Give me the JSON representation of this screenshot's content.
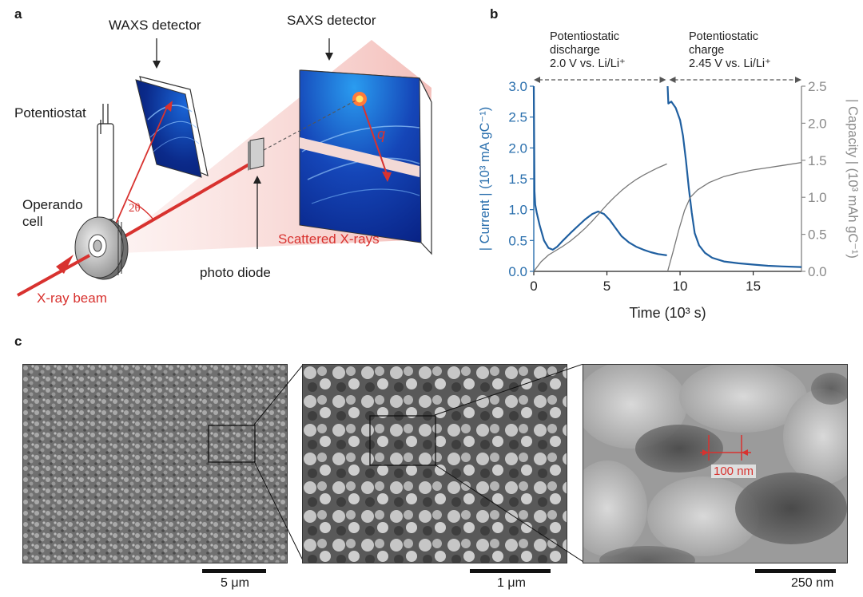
{
  "panel_a": {
    "letter": "a",
    "waxs_label": "WAXS detector",
    "saxs_label": "SAXS detector",
    "potentiostat_label": "Potentiostat",
    "cell_label_line1": "Operando",
    "cell_label_line2": "cell",
    "angle_label": "2θ",
    "q_label": "q",
    "scattered_label": "Scattered X-rays",
    "photodiode_label": "photo diode",
    "beam_label": "X-ray beam",
    "beam_color": "#d8322f"
  },
  "panel_b": {
    "letter": "b",
    "discharge_line1": "Potentiostatic",
    "discharge_line2": "discharge",
    "discharge_line3": "2.0 V vs. Li/Li⁺",
    "charge_line1": "Potentiostatic",
    "charge_line2": "charge",
    "charge_line3": "2.45 V vs. Li/Li⁺"
  },
  "chart_data": {
    "type": "line",
    "xlabel": "Time (10³ s)",
    "ylabel_left": "| Current | (10³ mA gC⁻¹)",
    "ylabel_right": "| Capacity | (10³ mAh gC⁻¹)",
    "xlim": [
      0,
      18.3
    ],
    "ylim_left": [
      0,
      3.0
    ],
    "ylim_right": [
      0,
      2.5
    ],
    "x_ticks": [
      0,
      5,
      10,
      15
    ],
    "y_ticks_left": [
      "0.0",
      "0.5",
      "1.0",
      "1.5",
      "2.0",
      "2.5",
      "3.0"
    ],
    "y_ticks_right": [
      "0.0",
      "0.5",
      "1.0",
      "1.5",
      "2.0",
      "2.5"
    ],
    "left_color": "#2a6fad",
    "right_color": "#8a8a8a",
    "series": [
      {
        "axis": "left",
        "color": "#1f5fa0",
        "x": [
          0.0,
          0.05,
          0.1,
          0.2,
          0.4,
          0.7,
          1.0,
          1.3,
          1.6,
          2.0,
          2.5,
          3.0,
          3.5,
          4.0,
          4.4,
          4.8,
          5.2,
          5.6,
          6.0,
          6.5,
          7.0,
          7.5,
          8.0,
          8.5,
          9.1
        ],
        "values": [
          3.0,
          1.3,
          1.08,
          0.95,
          0.75,
          0.5,
          0.38,
          0.35,
          0.4,
          0.5,
          0.62,
          0.73,
          0.84,
          0.93,
          0.97,
          0.93,
          0.83,
          0.7,
          0.57,
          0.47,
          0.4,
          0.35,
          0.31,
          0.28,
          0.26
        ]
      },
      {
        "axis": "left",
        "color": "#1f5fa0",
        "x": [
          9.15,
          9.2,
          9.4,
          9.7,
          10.0,
          10.2,
          10.4,
          10.6,
          10.8,
          11.0,
          11.3,
          11.7,
          12.2,
          13.0,
          14.0,
          15.0,
          16.0,
          17.0,
          18.3
        ],
        "values": [
          3.0,
          2.72,
          2.75,
          2.65,
          2.45,
          2.2,
          1.8,
          1.35,
          0.95,
          0.62,
          0.42,
          0.3,
          0.22,
          0.16,
          0.13,
          0.11,
          0.09,
          0.08,
          0.07
        ]
      },
      {
        "axis": "right",
        "color": "#777777",
        "x": [
          0.0,
          0.5,
          1.0,
          1.5,
          2.0,
          2.5,
          3.0,
          3.5,
          4.0,
          4.5,
          5.0,
          5.5,
          6.0,
          6.5,
          7.0,
          7.5,
          8.0,
          8.5,
          9.1
        ],
        "values": [
          0.0,
          0.13,
          0.22,
          0.28,
          0.34,
          0.41,
          0.49,
          0.58,
          0.68,
          0.79,
          0.9,
          1.0,
          1.09,
          1.17,
          1.24,
          1.3,
          1.35,
          1.4,
          1.45
        ]
      },
      {
        "axis": "right",
        "color": "#777777",
        "x": [
          9.15,
          9.5,
          9.9,
          10.3,
          10.7,
          11.2,
          12.0,
          13.0,
          14.0,
          15.0,
          16.0,
          17.0,
          18.3
        ],
        "values": [
          0.0,
          0.25,
          0.55,
          0.82,
          1.0,
          1.1,
          1.2,
          1.28,
          1.33,
          1.37,
          1.4,
          1.43,
          1.47
        ]
      }
    ]
  },
  "panel_c": {
    "letter": "c",
    "scale1": "5 μm",
    "scale2": "1 μm",
    "scale3": "250 nm",
    "measure_label": "100 nm"
  }
}
